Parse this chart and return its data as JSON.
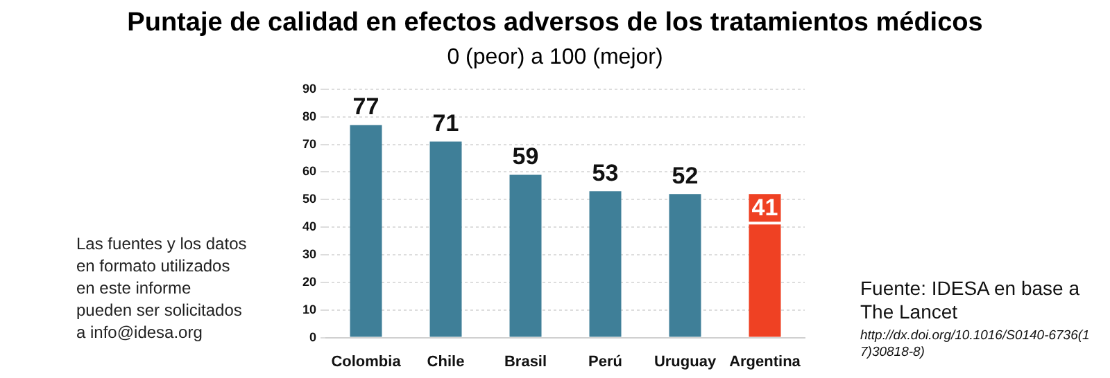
{
  "chart_data": {
    "type": "bar",
    "title": "Puntaje de calidad en efectos adversos de los tratamientos médicos",
    "subtitle": "0 (peor) a 100 (mejor)",
    "categories": [
      "Colombia",
      "Chile",
      "Brasil",
      "Perú",
      "Uruguay",
      "Argentina"
    ],
    "values": [
      77,
      71,
      59,
      53,
      52,
      41
    ],
    "colors": [
      "#3f7f98",
      "#3f7f98",
      "#3f7f98",
      "#3f7f98",
      "#3f7f98",
      "#ef4123"
    ],
    "ylim": [
      0,
      90
    ],
    "yticks": [
      0,
      10,
      20,
      30,
      40,
      50,
      60,
      70,
      80,
      90
    ],
    "grid": "y",
    "data_labels": true,
    "annotations": [
      "Las fuentes y los datos en formato utilizados en este informe pueden ser solicitados a info@idesa.org",
      "Fuente: IDESA en base a The Lancet",
      "http://dx.doi.org/10.1016/S0140-6736(17)30818-8)"
    ]
  }
}
